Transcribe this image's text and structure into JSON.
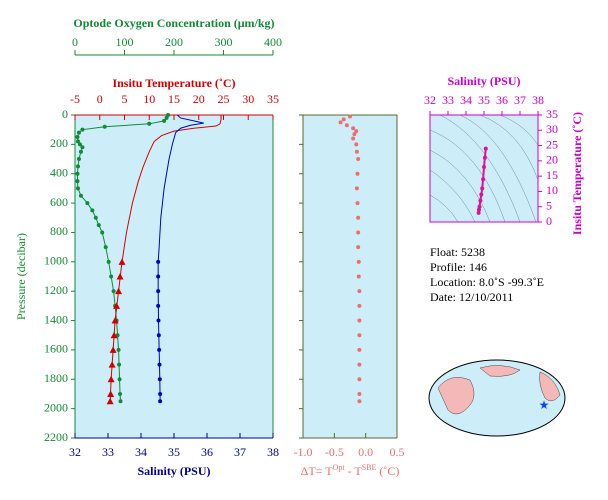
{
  "chart_data": [
    {
      "type": "profile",
      "y_label": "Pressure (decibar)",
      "ylim": [
        0,
        2200
      ],
      "yticks": [
        0,
        200,
        400,
        600,
        800,
        1000,
        1200,
        1400,
        1600,
        1800,
        2000,
        2200
      ],
      "y_inverted": true,
      "axes": [
        {
          "id": "oxygen",
          "label": "Optode Oxygen Concentration (μm/kg)",
          "color": "#138a36",
          "lim": [
            0,
            400
          ],
          "ticks": [
            0,
            100,
            200,
            300,
            400
          ],
          "position": "top-outer"
        },
        {
          "id": "temperature",
          "label": "Insitu Temperature (˚C)",
          "color": "#d40000",
          "lim": [
            -5,
            35
          ],
          "ticks": [
            -5,
            0,
            5,
            10,
            15,
            20,
            25,
            30,
            35
          ],
          "position": "top"
        },
        {
          "id": "salinity",
          "label": "Salinity (PSU)",
          "color": "#00008b",
          "lim": [
            32,
            38
          ],
          "ticks": [
            32,
            33,
            34,
            35,
            36,
            37,
            38
          ],
          "position": "bottom"
        }
      ],
      "series": [
        {
          "axis": "oxygen",
          "color": "#138a36",
          "line": true,
          "marker": "circle",
          "pressure": [
            0,
            20,
            40,
            60,
            80,
            100,
            120,
            150,
            180,
            200,
            220,
            250,
            300,
            350,
            400,
            450,
            500,
            550,
            600,
            650,
            700,
            750,
            800,
            900,
            1000,
            1100,
            1200,
            1300,
            1400,
            1500,
            1600,
            1700,
            1800,
            1900,
            1950
          ],
          "values": [
            188,
            185,
            180,
            150,
            60,
            15,
            8,
            5,
            6,
            10,
            15,
            12,
            8,
            6,
            5,
            5,
            6,
            12,
            25,
            35,
            42,
            48,
            55,
            62,
            68,
            73,
            78,
            81,
            84,
            86,
            88,
            89,
            90,
            91,
            92
          ]
        },
        {
          "axis": "temperature",
          "color": "#d40000",
          "line": true,
          "marker": "none",
          "pressure": [
            0,
            30,
            60,
            75,
            90,
            110,
            140,
            180,
            250,
            350,
            450,
            600,
            800,
            1000,
            1200,
            1400,
            1600,
            1800,
            1950
          ],
          "values": [
            24.5,
            24.5,
            24.3,
            23.5,
            19,
            15,
            12.5,
            11,
            10,
            8.8,
            7.8,
            6.6,
            5.4,
            4.5,
            3.8,
            3.1,
            2.7,
            2.3,
            2.1
          ]
        },
        {
          "axis": "temperature",
          "color": "#d40000",
          "line": false,
          "marker": "triangle",
          "pressure": [
            1000,
            1100,
            1200,
            1300,
            1400,
            1500,
            1600,
            1700,
            1800,
            1900,
            1950
          ],
          "values": [
            4.5,
            4.1,
            3.8,
            3.4,
            3.1,
            2.9,
            2.7,
            2.5,
            2.3,
            2.2,
            2.1
          ]
        },
        {
          "axis": "salinity",
          "color": "#0000cc",
          "line": true,
          "marker": "none",
          "pressure": [
            0,
            20,
            40,
            55,
            70,
            90,
            120,
            200,
            300,
            500,
            700,
            900,
            1000,
            1200,
            1400,
            1600,
            1800,
            1950
          ],
          "values": [
            35.1,
            35.2,
            35.6,
            35.9,
            35.5,
            35.2,
            35.05,
            34.95,
            34.85,
            34.7,
            34.6,
            34.55,
            34.52,
            34.52,
            34.53,
            34.55,
            34.57,
            34.58
          ]
        },
        {
          "axis": "salinity",
          "color": "#0000cc",
          "line": false,
          "marker": "circle",
          "pressure": [
            1000,
            1100,
            1200,
            1300,
            1400,
            1500,
            1600,
            1700,
            1800,
            1900,
            1950
          ],
          "values": [
            34.52,
            34.52,
            34.52,
            34.52,
            34.53,
            34.54,
            34.55,
            34.56,
            34.57,
            34.58,
            34.58
          ]
        }
      ]
    },
    {
      "type": "profile-delta",
      "x_label_parts": [
        "ΔT= T",
        "Opt",
        " - T",
        "SBE",
        " (˚C)"
      ],
      "color": "#ee6e6e",
      "xlim": [
        -1.0,
        0.5
      ],
      "xticks": [
        {
          "value": -1.0,
          "label": "-1.0"
        },
        {
          "value": -0.5,
          "label": "-0.5"
        },
        {
          "value": 0,
          "label": "0.0"
        },
        {
          "value": 0.5,
          "label": "0.5"
        }
      ],
      "ylim": [
        0,
        2200
      ],
      "yticks": [
        0,
        200,
        400,
        600,
        800,
        1000,
        1200,
        1400,
        1600,
        1800,
        2000,
        2200
      ],
      "pressure": [
        10,
        30,
        50,
        70,
        90,
        110,
        130,
        160,
        200,
        250,
        300,
        400,
        500,
        600,
        700,
        800,
        900,
        1000,
        1100,
        1200,
        1300,
        1400,
        1500,
        1600,
        1700,
        1800,
        1900,
        1950
      ],
      "values": [
        -0.25,
        -0.35,
        -0.4,
        -0.3,
        -0.2,
        -0.15,
        -0.18,
        -0.2,
        -0.15,
        -0.14,
        -0.12,
        -0.13,
        -0.14,
        -0.13,
        -0.12,
        -0.12,
        -0.12,
        -0.11,
        -0.11,
        -0.1,
        -0.1,
        -0.1,
        -0.1,
        -0.1,
        -0.1,
        -0.1,
        -0.1,
        -0.1
      ]
    },
    {
      "type": "ts",
      "x_label": "Salinity (PSU)",
      "y_label": "Insitu Temperature (˚C)",
      "color": "#e0109a",
      "axis_color": "#cc00cc",
      "xlim": [
        32,
        38
      ],
      "xticks": [
        32,
        33,
        34,
        35,
        36,
        37,
        38
      ],
      "ylim": [
        0,
        35
      ],
      "yticks": [
        0,
        5,
        10,
        15,
        20,
        25,
        30,
        35
      ],
      "x": [
        34.7,
        34.72,
        34.75,
        34.8,
        34.85,
        34.9,
        34.95,
        35.0,
        35.05,
        35.1
      ],
      "values": [
        3,
        4,
        5,
        7,
        9,
        11,
        14,
        18,
        21,
        24
      ]
    }
  ],
  "info": {
    "lines": [
      "Float:  5238",
      "Profile:  146",
      "Location:  8.0˚S  -99.3˚E",
      "Date:  12/10/2011"
    ]
  }
}
